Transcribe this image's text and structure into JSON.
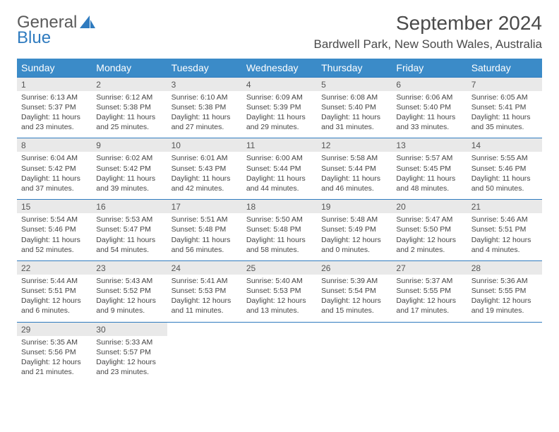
{
  "logo": {
    "text_general": "General",
    "text_blue": "Blue"
  },
  "title": "September 2024",
  "location": "Bardwell Park, New South Wales, Australia",
  "colors": {
    "header_bg": "#3b8bc8",
    "header_text": "#ffffff",
    "daynum_bg": "#e9e9e9",
    "cell_border": "#2f7bbf",
    "body_text": "#444444",
    "title_text": "#4a4a4a",
    "logo_gray": "#5a5a5a",
    "logo_blue": "#2f7bbf"
  },
  "weekdays": [
    "Sunday",
    "Monday",
    "Tuesday",
    "Wednesday",
    "Thursday",
    "Friday",
    "Saturday"
  ],
  "weeks": [
    [
      {
        "n": "1",
        "sr": "Sunrise: 6:13 AM",
        "ss": "Sunset: 5:37 PM",
        "d1": "Daylight: 11 hours",
        "d2": "and 23 minutes."
      },
      {
        "n": "2",
        "sr": "Sunrise: 6:12 AM",
        "ss": "Sunset: 5:38 PM",
        "d1": "Daylight: 11 hours",
        "d2": "and 25 minutes."
      },
      {
        "n": "3",
        "sr": "Sunrise: 6:10 AM",
        "ss": "Sunset: 5:38 PM",
        "d1": "Daylight: 11 hours",
        "d2": "and 27 minutes."
      },
      {
        "n": "4",
        "sr": "Sunrise: 6:09 AM",
        "ss": "Sunset: 5:39 PM",
        "d1": "Daylight: 11 hours",
        "d2": "and 29 minutes."
      },
      {
        "n": "5",
        "sr": "Sunrise: 6:08 AM",
        "ss": "Sunset: 5:40 PM",
        "d1": "Daylight: 11 hours",
        "d2": "and 31 minutes."
      },
      {
        "n": "6",
        "sr": "Sunrise: 6:06 AM",
        "ss": "Sunset: 5:40 PM",
        "d1": "Daylight: 11 hours",
        "d2": "and 33 minutes."
      },
      {
        "n": "7",
        "sr": "Sunrise: 6:05 AM",
        "ss": "Sunset: 5:41 PM",
        "d1": "Daylight: 11 hours",
        "d2": "and 35 minutes."
      }
    ],
    [
      {
        "n": "8",
        "sr": "Sunrise: 6:04 AM",
        "ss": "Sunset: 5:42 PM",
        "d1": "Daylight: 11 hours",
        "d2": "and 37 minutes."
      },
      {
        "n": "9",
        "sr": "Sunrise: 6:02 AM",
        "ss": "Sunset: 5:42 PM",
        "d1": "Daylight: 11 hours",
        "d2": "and 39 minutes."
      },
      {
        "n": "10",
        "sr": "Sunrise: 6:01 AM",
        "ss": "Sunset: 5:43 PM",
        "d1": "Daylight: 11 hours",
        "d2": "and 42 minutes."
      },
      {
        "n": "11",
        "sr": "Sunrise: 6:00 AM",
        "ss": "Sunset: 5:44 PM",
        "d1": "Daylight: 11 hours",
        "d2": "and 44 minutes."
      },
      {
        "n": "12",
        "sr": "Sunrise: 5:58 AM",
        "ss": "Sunset: 5:44 PM",
        "d1": "Daylight: 11 hours",
        "d2": "and 46 minutes."
      },
      {
        "n": "13",
        "sr": "Sunrise: 5:57 AM",
        "ss": "Sunset: 5:45 PM",
        "d1": "Daylight: 11 hours",
        "d2": "and 48 minutes."
      },
      {
        "n": "14",
        "sr": "Sunrise: 5:55 AM",
        "ss": "Sunset: 5:46 PM",
        "d1": "Daylight: 11 hours",
        "d2": "and 50 minutes."
      }
    ],
    [
      {
        "n": "15",
        "sr": "Sunrise: 5:54 AM",
        "ss": "Sunset: 5:46 PM",
        "d1": "Daylight: 11 hours",
        "d2": "and 52 minutes."
      },
      {
        "n": "16",
        "sr": "Sunrise: 5:53 AM",
        "ss": "Sunset: 5:47 PM",
        "d1": "Daylight: 11 hours",
        "d2": "and 54 minutes."
      },
      {
        "n": "17",
        "sr": "Sunrise: 5:51 AM",
        "ss": "Sunset: 5:48 PM",
        "d1": "Daylight: 11 hours",
        "d2": "and 56 minutes."
      },
      {
        "n": "18",
        "sr": "Sunrise: 5:50 AM",
        "ss": "Sunset: 5:48 PM",
        "d1": "Daylight: 11 hours",
        "d2": "and 58 minutes."
      },
      {
        "n": "19",
        "sr": "Sunrise: 5:48 AM",
        "ss": "Sunset: 5:49 PM",
        "d1": "Daylight: 12 hours",
        "d2": "and 0 minutes."
      },
      {
        "n": "20",
        "sr": "Sunrise: 5:47 AM",
        "ss": "Sunset: 5:50 PM",
        "d1": "Daylight: 12 hours",
        "d2": "and 2 minutes."
      },
      {
        "n": "21",
        "sr": "Sunrise: 5:46 AM",
        "ss": "Sunset: 5:51 PM",
        "d1": "Daylight: 12 hours",
        "d2": "and 4 minutes."
      }
    ],
    [
      {
        "n": "22",
        "sr": "Sunrise: 5:44 AM",
        "ss": "Sunset: 5:51 PM",
        "d1": "Daylight: 12 hours",
        "d2": "and 6 minutes."
      },
      {
        "n": "23",
        "sr": "Sunrise: 5:43 AM",
        "ss": "Sunset: 5:52 PM",
        "d1": "Daylight: 12 hours",
        "d2": "and 9 minutes."
      },
      {
        "n": "24",
        "sr": "Sunrise: 5:41 AM",
        "ss": "Sunset: 5:53 PM",
        "d1": "Daylight: 12 hours",
        "d2": "and 11 minutes."
      },
      {
        "n": "25",
        "sr": "Sunrise: 5:40 AM",
        "ss": "Sunset: 5:53 PM",
        "d1": "Daylight: 12 hours",
        "d2": "and 13 minutes."
      },
      {
        "n": "26",
        "sr": "Sunrise: 5:39 AM",
        "ss": "Sunset: 5:54 PM",
        "d1": "Daylight: 12 hours",
        "d2": "and 15 minutes."
      },
      {
        "n": "27",
        "sr": "Sunrise: 5:37 AM",
        "ss": "Sunset: 5:55 PM",
        "d1": "Daylight: 12 hours",
        "d2": "and 17 minutes."
      },
      {
        "n": "28",
        "sr": "Sunrise: 5:36 AM",
        "ss": "Sunset: 5:55 PM",
        "d1": "Daylight: 12 hours",
        "d2": "and 19 minutes."
      }
    ],
    [
      {
        "n": "29",
        "sr": "Sunrise: 5:35 AM",
        "ss": "Sunset: 5:56 PM",
        "d1": "Daylight: 12 hours",
        "d2": "and 21 minutes."
      },
      {
        "n": "30",
        "sr": "Sunrise: 5:33 AM",
        "ss": "Sunset: 5:57 PM",
        "d1": "Daylight: 12 hours",
        "d2": "and 23 minutes."
      },
      {
        "empty": true
      },
      {
        "empty": true
      },
      {
        "empty": true
      },
      {
        "empty": true
      },
      {
        "empty": true
      }
    ]
  ]
}
